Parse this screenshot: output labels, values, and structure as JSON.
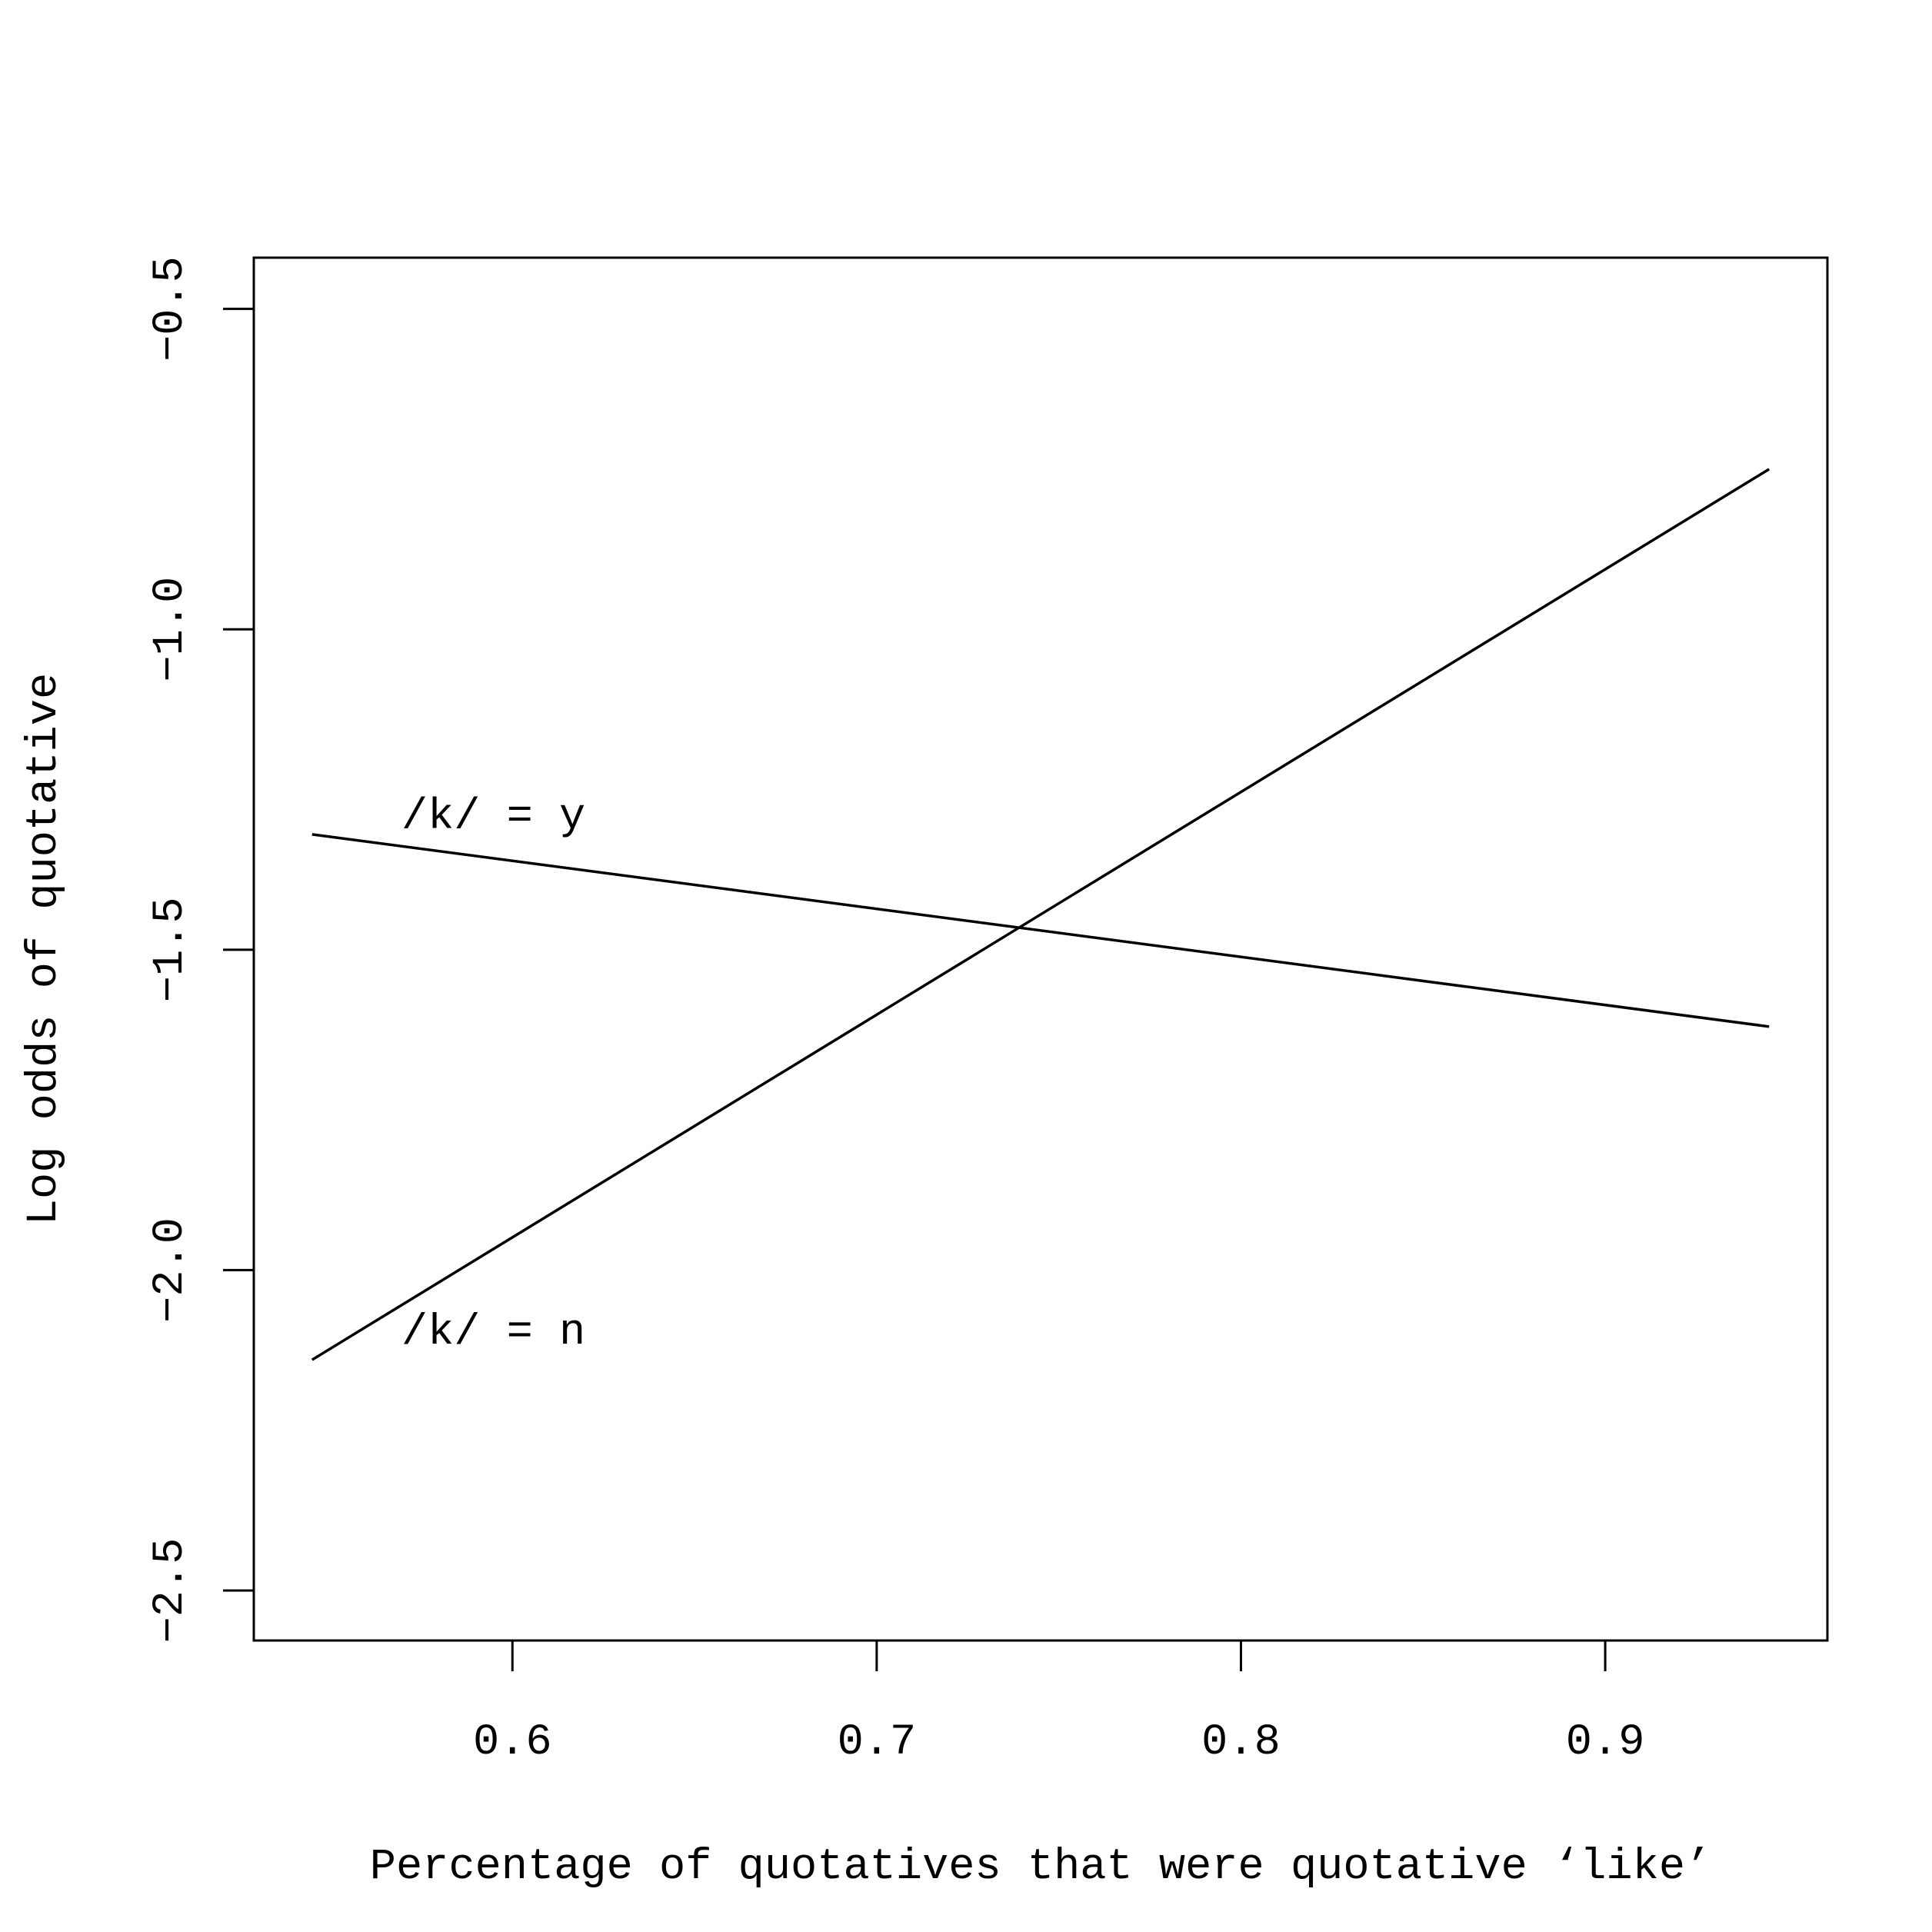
{
  "chart_data": {
    "type": "line",
    "title": "",
    "xlabel": "Percentage of quotatives that were quotative ‘like’",
    "ylabel": "Log odds of quotative",
    "xlim": [
      0.529,
      0.961
    ],
    "ylim": [
      -2.578,
      -0.42
    ],
    "xticks": [
      0.6,
      0.7,
      0.8,
      0.9
    ],
    "xtick_labels": [
      "0.6",
      "0.7",
      "0.8",
      "0.9"
    ],
    "yticks": [
      -2.5,
      -2.0,
      -1.5,
      -1.0,
      -0.5
    ],
    "ytick_labels": [
      "−2.5",
      "−2.0",
      "−1.5",
      "−1.0",
      "−0.5"
    ],
    "grid": false,
    "legend": "none",
    "line_color": "#000000",
    "series": [
      {
        "name": "/k/ = y",
        "x": [
          0.545,
          0.945
        ],
        "y": [
          -1.32,
          -1.62
        ]
      },
      {
        "name": "/k/ = n",
        "x": [
          0.545,
          0.945
        ],
        "y": [
          -2.14,
          -0.75
        ]
      }
    ],
    "annotations": [
      {
        "text": "/k/ = y",
        "x": 0.5695,
        "y": -1.31
      },
      {
        "text": "/k/ = n",
        "x": 0.5695,
        "y": -2.115
      }
    ]
  }
}
